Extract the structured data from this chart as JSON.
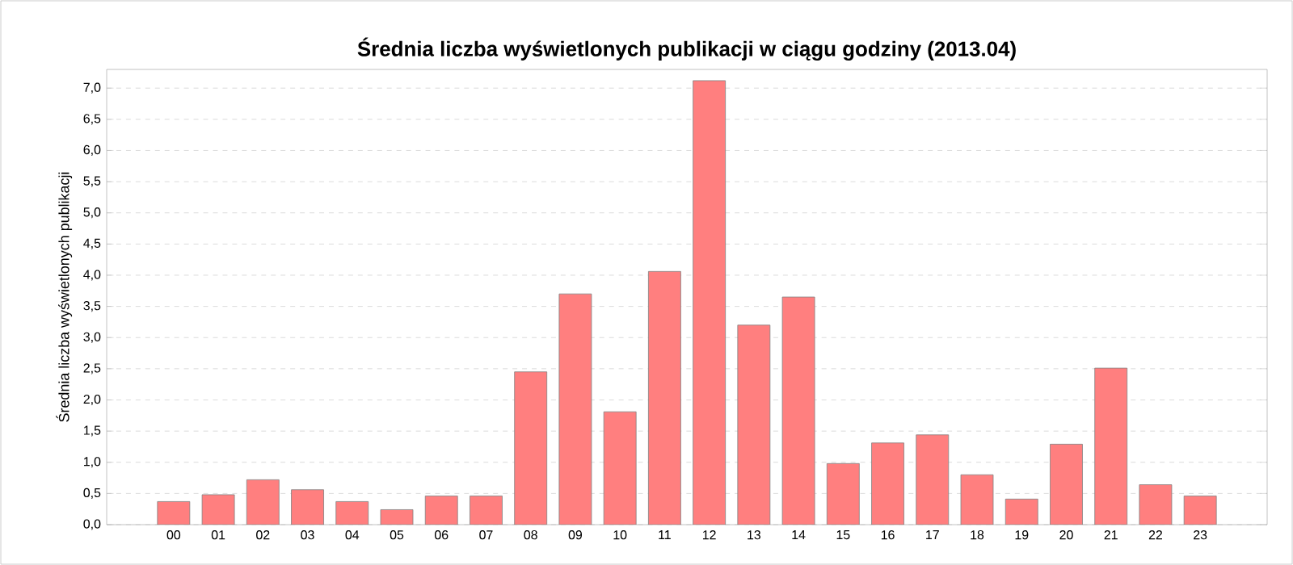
{
  "chart_data": {
    "type": "bar",
    "title": "Średnia liczba wyświetlonych publikacji w ciągu godziny (2013.04)",
    "ylabel": "Średnia liczba wyświetlonych publikacji",
    "categories": [
      "00",
      "01",
      "02",
      "03",
      "04",
      "05",
      "06",
      "07",
      "08",
      "09",
      "10",
      "11",
      "12",
      "13",
      "14",
      "15",
      "16",
      "17",
      "18",
      "19",
      "20",
      "21",
      "22",
      "23"
    ],
    "values": [
      0.37,
      0.48,
      0.72,
      0.56,
      0.37,
      0.24,
      0.46,
      0.46,
      2.45,
      3.7,
      1.81,
      4.06,
      7.12,
      3.2,
      3.65,
      0.98,
      1.31,
      1.44,
      0.8,
      0.41,
      1.29,
      2.51,
      0.64,
      0.46
    ],
    "color": "#ff7f7f",
    "ylim": [
      0,
      7.3
    ],
    "yticks": [
      {
        "value": 0,
        "label": "0,0"
      },
      {
        "value": 0.5,
        "label": "0,5"
      },
      {
        "value": 1,
        "label": "1,0"
      },
      {
        "value": 1.5,
        "label": "1,5"
      },
      {
        "value": 2,
        "label": "2,0"
      },
      {
        "value": 2.5,
        "label": "2,5"
      },
      {
        "value": 3,
        "label": "3,0"
      },
      {
        "value": 3.5,
        "label": "3,5"
      },
      {
        "value": 4,
        "label": "4,0"
      },
      {
        "value": 4.5,
        "label": "4,5"
      },
      {
        "value": 5,
        "label": "5,0"
      },
      {
        "value": 5.5,
        "label": "5,5"
      },
      {
        "value": 6,
        "label": "6,0"
      },
      {
        "value": 6.5,
        "label": "6,5"
      },
      {
        "value": 7,
        "label": "7,0"
      }
    ],
    "grid": "y"
  }
}
